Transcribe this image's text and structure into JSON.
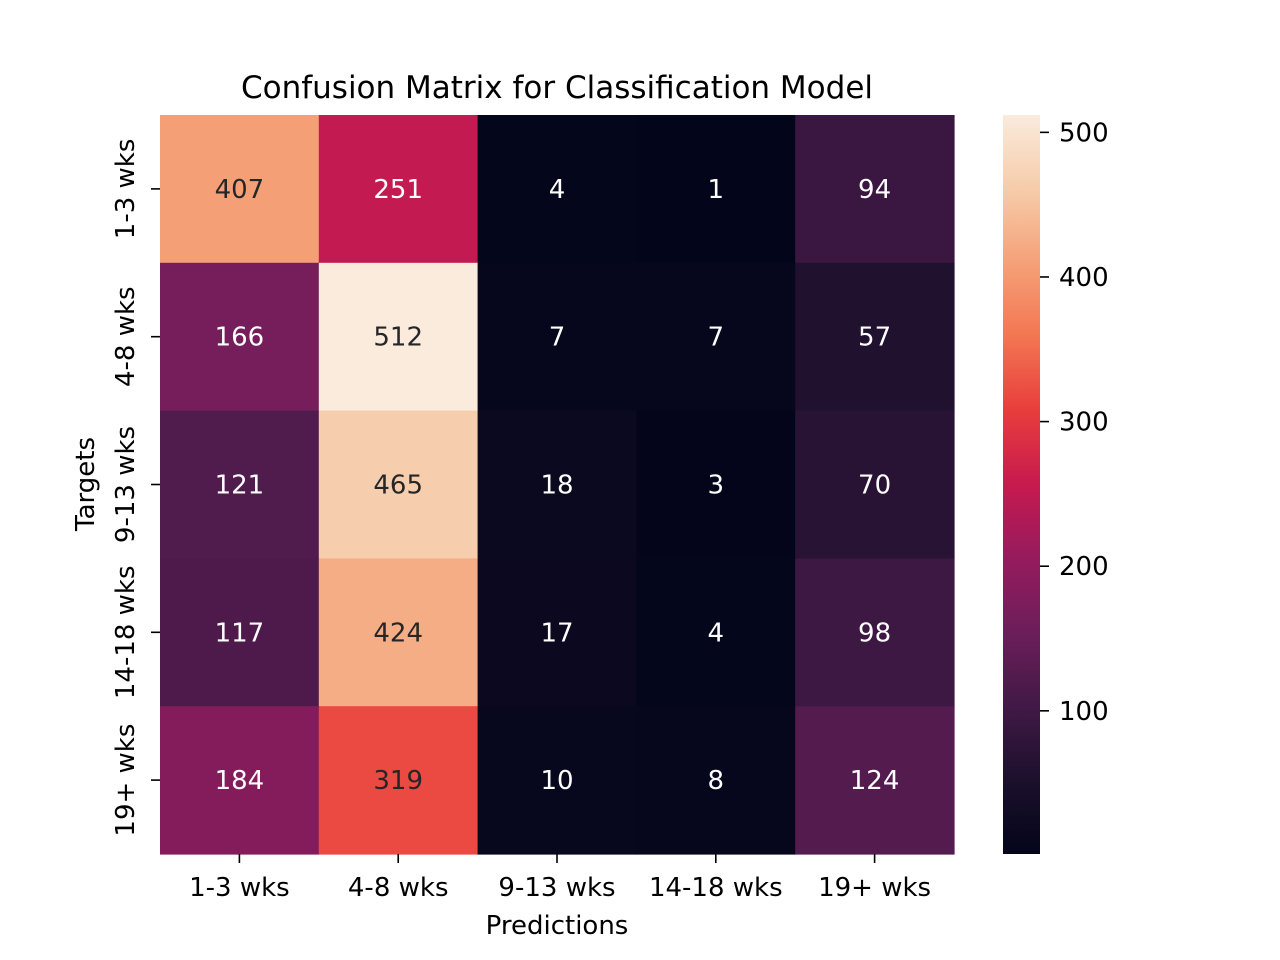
{
  "chart_data": {
    "type": "heatmap",
    "title": "Confusion Matrix for Classification Model",
    "xlabel": "Predictions",
    "ylabel": "Targets",
    "x_categories": [
      "1-3 wks",
      "4-8 wks",
      "9-13 wks",
      "14-18 wks",
      "19+ wks"
    ],
    "y_categories": [
      "1-3 wks",
      "4-8 wks",
      "9-13 wks",
      "14-18 wks",
      "19+ wks"
    ],
    "values": [
      [
        407,
        251,
        4,
        1,
        94
      ],
      [
        166,
        512,
        7,
        7,
        57
      ],
      [
        121,
        465,
        18,
        3,
        70
      ],
      [
        117,
        424,
        17,
        4,
        98
      ],
      [
        184,
        319,
        10,
        8,
        124
      ]
    ],
    "vmin": 1,
    "vmax": 512,
    "colormap": "rocket",
    "colorbar": {
      "ticks": [
        100,
        200,
        300,
        400,
        500
      ]
    },
    "annotations": true
  }
}
